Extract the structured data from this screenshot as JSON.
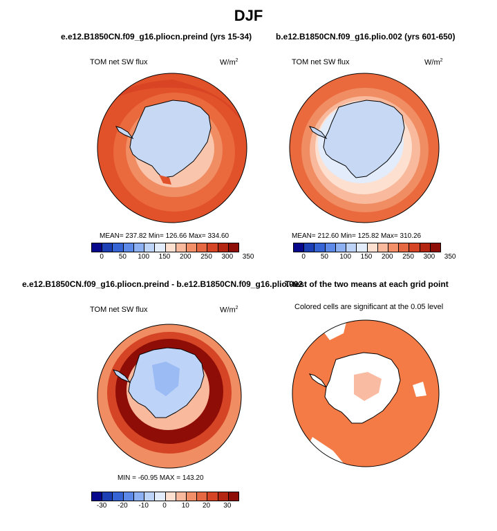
{
  "main_title": "DJF",
  "panels": [
    {
      "title": "e.e12.B1850CN.f09_g16.pliocn.preind (yrs 15-34)",
      "variable": "TOM net SW flux",
      "units_base": "W/m",
      "units_exp": "2",
      "stats": "MEAN= 237.82   Min= 126.66   Max= 334.60",
      "colorbar_ticks": [
        "0",
        "50",
        "100",
        "150",
        "200",
        "250",
        "300",
        "350"
      ]
    },
    {
      "title": "b.e12.B1850CN.f09_g16.plio.002 (yrs 601-650)",
      "variable": "TOM net SW flux",
      "units_base": "W/m",
      "units_exp": "2",
      "stats": "MEAN= 212.60   Min= 125.82   Max= 310.26",
      "colorbar_ticks": [
        "0",
        "50",
        "100",
        "150",
        "200",
        "250",
        "300",
        "350"
      ]
    },
    {
      "title": "e.e12.B1850CN.f09_g16.pliocn.preind - b.e12.B1850CN.f09_g16.plio.002",
      "variable": "TOM net SW flux",
      "units_base": "W/m",
      "units_exp": "2",
      "stats": "MIN = -60.95  MAX = 143.20",
      "colorbar_ticks": [
        "-30",
        "-20",
        "-10",
        "0",
        "10",
        "20",
        "30"
      ]
    },
    {
      "title": "T-test of the two means at each grid point",
      "subtitle": "Colored cells are significant at the 0.05 level"
    }
  ],
  "colors": {
    "ice": "#c6d8f4",
    "ocean_dark": "#c43a18",
    "ocean_mid": "#e2522a",
    "ocean_light": "#f5a37f",
    "diff_max": "#8e0d06",
    "significant": "#f47a46",
    "coast": "#000000"
  },
  "colorbar_colors_abs": [
    "#08088c",
    "#1c3fb5",
    "#3764d4",
    "#5d8ae8",
    "#8cb0f2",
    "#bdd3f7",
    "#e2ecfb",
    "#fde0d0",
    "#f8b99c",
    "#f28f68",
    "#e66842",
    "#d44425",
    "#b52612",
    "#8e0d06"
  ],
  "colorbar_colors_diff": [
    "#08088c",
    "#1c3fb5",
    "#3764d4",
    "#5d8ae8",
    "#8cb0f2",
    "#bdd3f7",
    "#e2ecfb",
    "#fde0d0",
    "#f8b99c",
    "#f28f68",
    "#e66842",
    "#d44425",
    "#b52612",
    "#8e0d06"
  ]
}
